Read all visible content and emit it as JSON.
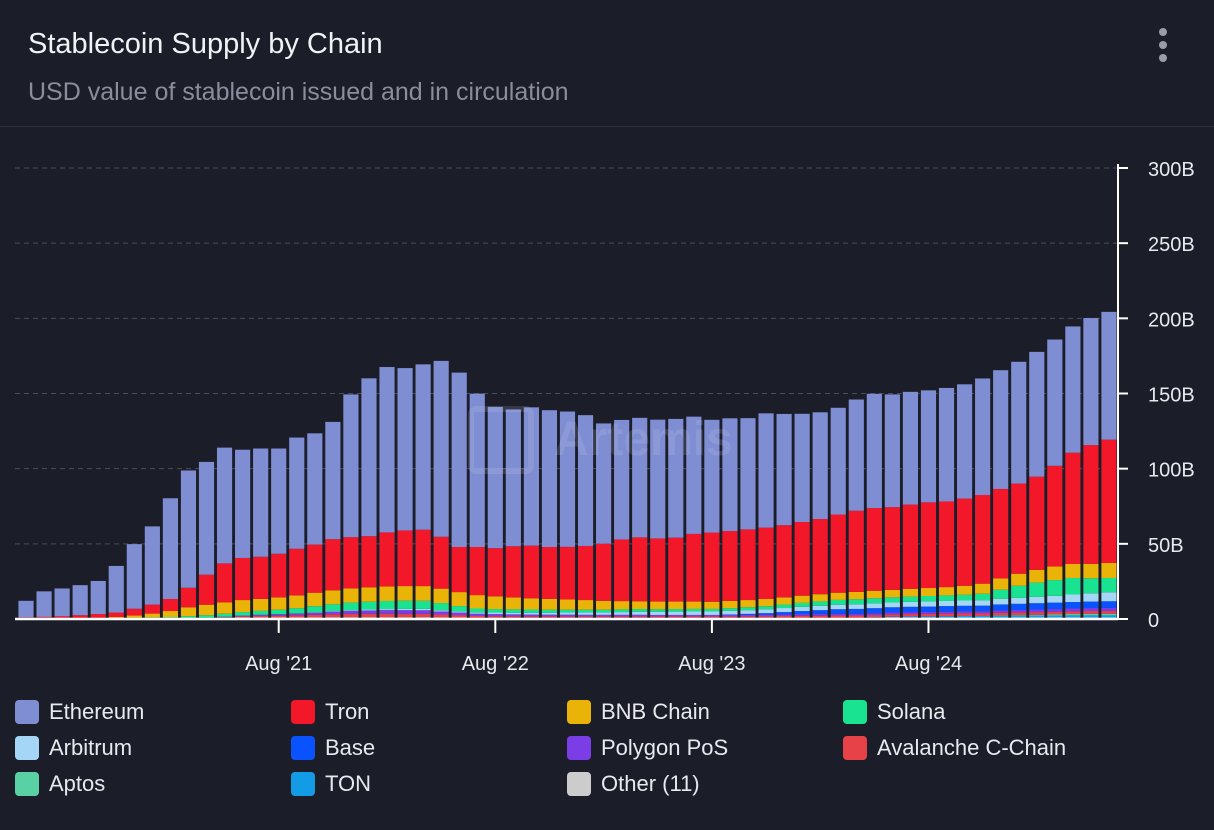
{
  "header": {
    "title": "Stablecoin Supply by Chain",
    "subtitle": "USD value of stablecoin issued and in circulation"
  },
  "watermark": "Artemis",
  "legend": [
    {
      "label": "Ethereum",
      "color": "#7f8ed3"
    },
    {
      "label": "Tron",
      "color": "#f2182a"
    },
    {
      "label": "BNB Chain",
      "color": "#eab308"
    },
    {
      "label": "Solana",
      "color": "#19e391"
    },
    {
      "label": "Arbitrum",
      "color": "#a6d6f5"
    },
    {
      "label": "Base",
      "color": "#0b52ff"
    },
    {
      "label": "Polygon PoS",
      "color": "#7b3ee6"
    },
    {
      "label": "Avalanche C-Chain",
      "color": "#e84249"
    },
    {
      "label": "Aptos",
      "color": "#5ad1a4"
    },
    {
      "label": "TON",
      "color": "#139be6"
    },
    {
      "label": "Other (11)",
      "color": "#cccccc"
    }
  ],
  "chart_data": {
    "type": "bar",
    "stacked": true,
    "x": [
      "2020-06",
      "2020-07",
      "2020-08",
      "2020-09",
      "2020-10",
      "2020-11",
      "2020-12",
      "2021-01",
      "2021-02",
      "2021-03",
      "2021-04",
      "2021-05",
      "2021-06",
      "2021-07",
      "2021-08",
      "2021-09",
      "2021-10",
      "2021-11",
      "2021-12",
      "2022-01",
      "2022-02",
      "2022-03",
      "2022-04",
      "2022-05",
      "2022-06",
      "2022-07",
      "2022-08",
      "2022-09",
      "2022-10",
      "2022-11",
      "2022-12",
      "2023-01",
      "2023-02",
      "2023-03",
      "2023-04",
      "2023-05",
      "2023-06",
      "2023-07",
      "2023-08",
      "2023-09",
      "2023-10",
      "2023-11",
      "2023-12",
      "2024-01",
      "2024-02",
      "2024-03",
      "2024-04",
      "2024-05",
      "2024-06",
      "2024-07",
      "2024-08",
      "2024-09",
      "2024-10",
      "2024-11",
      "2024-12",
      "2025-01",
      "2025-02",
      "2025-03",
      "2025-04",
      "2025-05",
      "2025-06"
    ],
    "xtick_labels": [
      "Aug '21",
      "Aug '22",
      "Aug '23",
      "Aug '24"
    ],
    "ylim": [
      0,
      300
    ],
    "yticks": [
      "0",
      "50B",
      "100B",
      "150B",
      "200B",
      "250B",
      "300B"
    ],
    "y_unit": "B",
    "series": [
      {
        "name": "Other (11)",
        "values": [
          0.3,
          0.3,
          0.3,
          0.3,
          0.3,
          0.3,
          0.3,
          0.3,
          0.3,
          0.5,
          0.6,
          0.8,
          1.0,
          1.0,
          1.0,
          1.0,
          1.0,
          1.2,
          1.2,
          1.2,
          1.2,
          1.2,
          1.2,
          1.0,
          1.0,
          0.8,
          0.8,
          0.8,
          0.8,
          0.8,
          0.8,
          0.8,
          0.8,
          0.8,
          0.8,
          0.8,
          0.8,
          0.8,
          0.8,
          0.8,
          0.8,
          0.8,
          0.8,
          0.8,
          0.8,
          0.8,
          0.8,
          0.8,
          1.0,
          1.0,
          1.0,
          1.0,
          1.0,
          1.0,
          1.0,
          1.0,
          1.0,
          1.0,
          1.0,
          1.0,
          1.0
        ]
      },
      {
        "name": "TON",
        "values": [
          0,
          0,
          0,
          0,
          0,
          0,
          0,
          0,
          0,
          0,
          0,
          0,
          0,
          0,
          0,
          0,
          0,
          0,
          0,
          0,
          0,
          0,
          0,
          0,
          0,
          0,
          0,
          0,
          0,
          0,
          0,
          0,
          0,
          0,
          0,
          0,
          0,
          0,
          0,
          0,
          0,
          0,
          0,
          0,
          0,
          0,
          0,
          0.3,
          0.5,
          0.7,
          0.8,
          0.9,
          1.0,
          1.0,
          1.1,
          1.2,
          1.3,
          1.3,
          1.4,
          1.4,
          1.4
        ]
      },
      {
        "name": "Aptos",
        "values": [
          0,
          0,
          0,
          0,
          0,
          0,
          0,
          0,
          0,
          0,
          0,
          0,
          0,
          0,
          0,
          0,
          0,
          0,
          0,
          0,
          0,
          0,
          0,
          0,
          0,
          0,
          0,
          0,
          0,
          0,
          0,
          0,
          0,
          0,
          0,
          0,
          0,
          0,
          0,
          0,
          0,
          0,
          0,
          0,
          0,
          0,
          0,
          0,
          0,
          0,
          0,
          0,
          0,
          0,
          0.3,
          0.4,
          0.5,
          0.7,
          0.9,
          1.0,
          1.1
        ]
      },
      {
        "name": "Avalanche C-Chain",
        "values": [
          0,
          0,
          0,
          0,
          0,
          0,
          0,
          0,
          0,
          0,
          0.2,
          0.4,
          0.8,
          1.0,
          1.2,
          1.5,
          1.8,
          2.0,
          2.2,
          2.3,
          2.3,
          2.2,
          2.2,
          2.0,
          1.6,
          1.2,
          1.1,
          1.0,
          1.0,
          0.9,
          0.9,
          0.9,
          0.9,
          0.9,
          0.9,
          0.9,
          0.9,
          0.9,
          0.9,
          0.9,
          1.0,
          1.1,
          1.2,
          1.3,
          1.4,
          1.5,
          1.5,
          1.5,
          1.6,
          1.6,
          1.6,
          1.7,
          1.7,
          1.7,
          1.8,
          1.8,
          1.8,
          1.8,
          1.8,
          1.9,
          1.9
        ]
      },
      {
        "name": "Polygon PoS",
        "values": [
          0,
          0,
          0,
          0,
          0,
          0,
          0,
          0,
          0,
          0,
          0.1,
          0.3,
          0.5,
          0.8,
          1.0,
          1.2,
          1.5,
          1.8,
          2.0,
          2.2,
          2.4,
          2.5,
          2.4,
          2.0,
          1.7,
          1.5,
          1.4,
          1.3,
          1.2,
          1.2,
          1.2,
          1.1,
          1.1,
          1.1,
          1.1,
          1.0,
          1.0,
          1.0,
          1.0,
          1.0,
          1.0,
          1.0,
          1.1,
          1.2,
          1.2,
          1.2,
          1.2,
          1.2,
          1.2,
          1.3,
          1.3,
          1.3,
          1.3,
          1.4,
          1.5,
          1.6,
          1.7,
          1.8,
          1.9,
          2.0,
          2.0
        ]
      },
      {
        "name": "Base",
        "values": [
          0,
          0,
          0,
          0,
          0,
          0,
          0,
          0,
          0,
          0,
          0,
          0,
          0,
          0,
          0,
          0,
          0,
          0,
          0,
          0,
          0,
          0,
          0,
          0,
          0,
          0,
          0,
          0,
          0,
          0,
          0,
          0,
          0,
          0,
          0,
          0,
          0,
          0,
          0,
          0.3,
          0.6,
          1.0,
          1.5,
          2.0,
          2.5,
          3.0,
          3.2,
          3.4,
          3.5,
          3.5,
          3.6,
          3.7,
          3.8,
          3.8,
          4.0,
          4.1,
          4.2,
          4.3,
          4.3,
          4.3,
          4.4
        ]
      },
      {
        "name": "Arbitrum",
        "values": [
          0,
          0,
          0,
          0,
          0,
          0,
          0,
          0,
          0,
          0,
          0,
          0,
          0,
          0,
          0,
          0,
          0.2,
          0.3,
          0.5,
          0.6,
          0.7,
          0.8,
          0.9,
          0.8,
          0.8,
          0.9,
          1.0,
          1.1,
          1.2,
          1.3,
          1.4,
          1.5,
          1.6,
          1.8,
          2.0,
          2.1,
          2.2,
          2.3,
          2.3,
          2.4,
          2.5,
          2.6,
          2.7,
          2.8,
          2.9,
          3.0,
          3.1,
          3.2,
          3.2,
          3.3,
          3.4,
          3.4,
          3.5,
          3.6,
          3.8,
          4.0,
          4.2,
          4.5,
          5.0,
          5.5,
          6.0
        ]
      },
      {
        "name": "Solana",
        "values": [
          0,
          0,
          0,
          0,
          0,
          0.2,
          0.5,
          0.8,
          1.0,
          1.3,
          1.6,
          2.0,
          2.3,
          2.6,
          3.0,
          3.5,
          4.0,
          4.5,
          5.0,
          5.2,
          5.4,
          5.5,
          5.4,
          4.8,
          3.5,
          2.6,
          2.3,
          2.2,
          2.1,
          2.0,
          1.9,
          1.9,
          1.8,
          1.8,
          1.8,
          1.7,
          1.7,
          1.7,
          1.7,
          1.8,
          1.9,
          2.0,
          2.3,
          2.6,
          2.9,
          3.2,
          3.3,
          3.4,
          3.4,
          3.5,
          3.6,
          3.7,
          3.8,
          4.3,
          6.0,
          8.0,
          9.5,
          10.5,
          11.0,
          10.0,
          9.5
        ]
      },
      {
        "name": "BNB Chain",
        "values": [
          0.3,
          0.3,
          0.3,
          0.4,
          0.5,
          0.8,
          1.5,
          2.5,
          4.0,
          6.0,
          7.0,
          7.5,
          8.0,
          8.0,
          8.2,
          8.5,
          9.0,
          9.3,
          9.5,
          9.6,
          9.6,
          9.7,
          9.8,
          9.6,
          9.3,
          8.9,
          8.5,
          8.0,
          7.5,
          7.2,
          6.8,
          6.4,
          5.9,
          5.5,
          5.2,
          5.1,
          5.0,
          4.9,
          4.8,
          4.8,
          4.8,
          4.8,
          4.8,
          4.8,
          4.8,
          4.8,
          4.9,
          5.0,
          5.0,
          5.2,
          5.3,
          5.5,
          6.0,
          6.7,
          7.5,
          8.0,
          8.5,
          9.0,
          9.3,
          9.6,
          10.0
        ]
      },
      {
        "name": "Tron",
        "values": [
          0.5,
          0.8,
          1.2,
          1.8,
          2.5,
          3.0,
          4.5,
          6.0,
          8.0,
          13.0,
          20.0,
          26.0,
          28.0,
          28.0,
          29.0,
          31.0,
          32.0,
          34.0,
          34.0,
          34.0,
          36.0,
          37.0,
          37.5,
          34.5,
          30.0,
          32.0,
          32.0,
          34.0,
          35.0,
          34.5,
          35.0,
          36.0,
          38.0,
          41.0,
          42.5,
          42.0,
          42.5,
          45.0,
          46.0,
          46.5,
          47.0,
          47.5,
          48.0,
          49.0,
          50.0,
          52.0,
          54.0,
          55.0,
          55.0,
          56.0,
          57.0,
          57.0,
          58.0,
          59.0,
          59.5,
          60.0,
          62.0,
          67.0,
          74.0,
          79.0,
          82.0
        ]
      },
      {
        "name": "Ethereum",
        "values": [
          11.0,
          17.0,
          18.5,
          20.0,
          22.0,
          31.0,
          43.0,
          52.0,
          67.0,
          78.0,
          75.0,
          77.0,
          72.0,
          72.0,
          70.0,
          74.0,
          74.0,
          78.0,
          95.0,
          105.0,
          110.0,
          108.0,
          110.0,
          117.0,
          116.0,
          102.0,
          94.0,
          91.0,
          92.0,
          91.0,
          90.0,
          87.0,
          80.0,
          79.5,
          79.5,
          79.0,
          79.0,
          78.0,
          75.0,
          75.0,
          74.0,
          76.0,
          74.0,
          72.0,
          71.0,
          71.0,
          74.0,
          76.0,
          75.0,
          75.0,
          74.5,
          75.5,
          76.0,
          77.5,
          79.0,
          81.0,
          83.0,
          84.0,
          84.0,
          84.5,
          85.0
        ]
      }
    ]
  }
}
